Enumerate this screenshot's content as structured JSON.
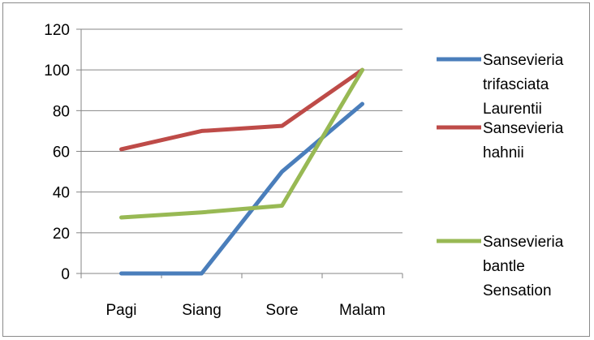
{
  "chart_data": {
    "type": "line",
    "categories": [
      "Pagi",
      "Siang",
      "Sore",
      "Malam"
    ],
    "series": [
      {
        "name": "Sansevieria trifasciata Laurentii",
        "values": [
          0,
          0,
          50,
          83.3
        ],
        "color": "#4a7ebb"
      },
      {
        "name": "Sansevieria hahnii",
        "values": [
          61,
          70,
          72.5,
          100
        ],
        "color": "#be4b48"
      },
      {
        "name": "Sansevieria bantle Sensation",
        "values": [
          27.5,
          30,
          33.3,
          100
        ],
        "color": "#98b954"
      }
    ],
    "ylim": [
      0,
      120
    ],
    "yticks": [
      0,
      20,
      40,
      60,
      80,
      100,
      120
    ],
    "grid": true,
    "legend_position": "right",
    "legend_lines": [
      [
        "Sansevieria",
        "trifasciata",
        "Laurentii"
      ],
      [
        "Sansevieria",
        "hahnii"
      ],
      [
        "Sansevieria",
        "bantle",
        "Sensation"
      ]
    ]
  }
}
